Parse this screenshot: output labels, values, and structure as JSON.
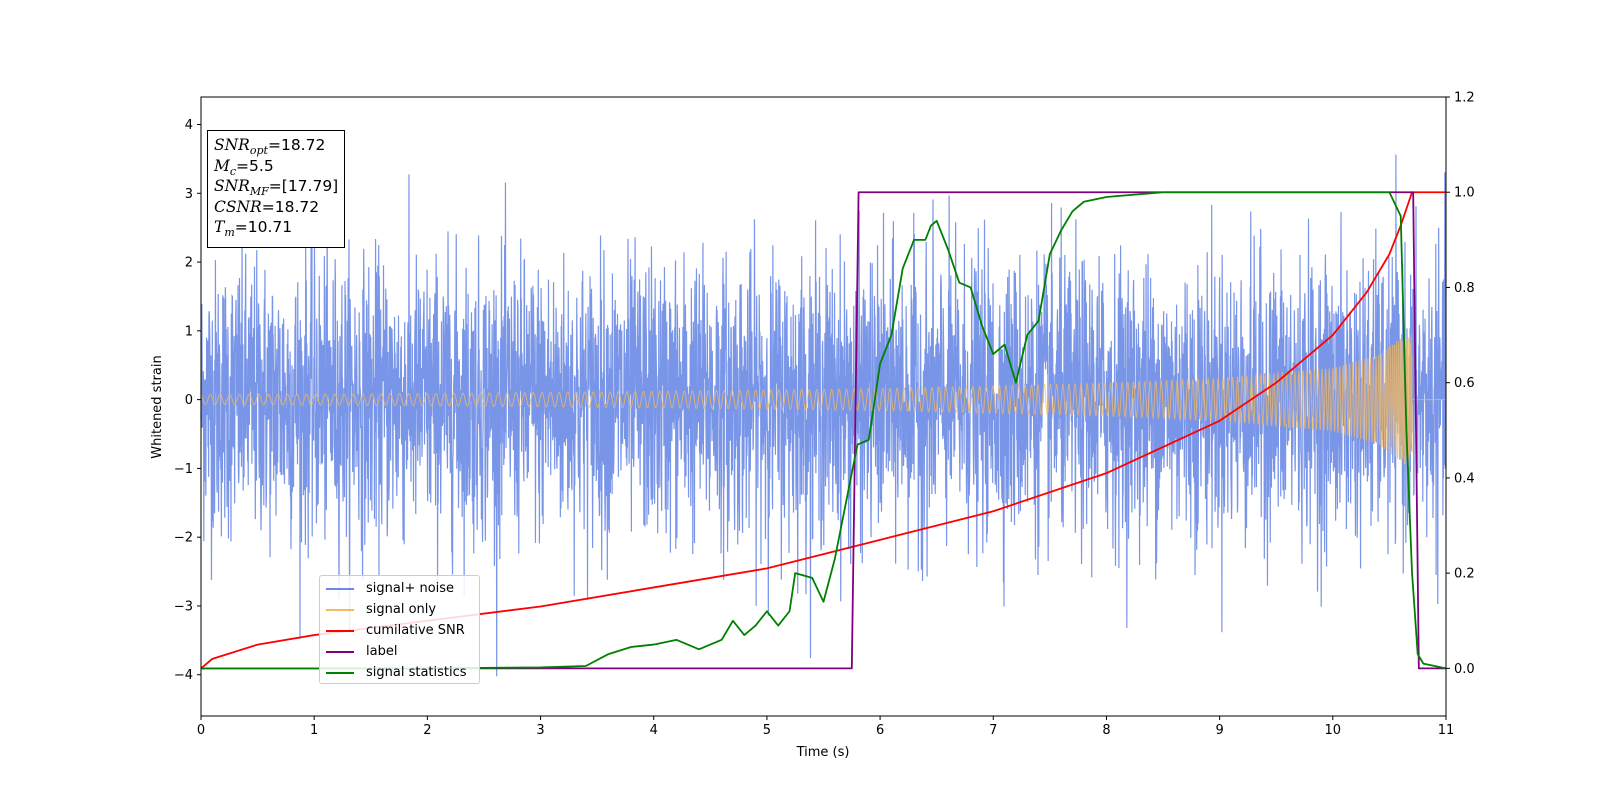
{
  "chart_data": {
    "type": "line",
    "xlabel": "Time (s)",
    "ylabel": "Whitened strain",
    "xlim": [
      0,
      11
    ],
    "ylim_left": [
      -4.6,
      4.4
    ],
    "ylim_right": [
      -0.1,
      1.2
    ],
    "x_ticks": [
      "0",
      "1",
      "2",
      "3",
      "4",
      "5",
      "6",
      "7",
      "8",
      "9",
      "10",
      "11"
    ],
    "y_ticks_left": [
      "4",
      "3",
      "2",
      "1",
      "0",
      "−1",
      "−2",
      "−3",
      "−4"
    ],
    "y_ticks_right": [
      "1.2",
      "1.0",
      "0.8",
      "0.6",
      "0.4",
      "0.2",
      "0.0"
    ],
    "grid": false,
    "legend_position": "lower-left",
    "annotation": {
      "snr_opt": "18.72",
      "mc": "5.5",
      "snr_mf": "[17.79]",
      "csnr": "18.72",
      "tm": "10.71"
    },
    "series": [
      {
        "name": "signal+ noise",
        "color": "#6a8ae6",
        "axis": "left",
        "description_values": {
          "amplitude_std": 1.0,
          "min": -4.2,
          "max": 4.0
        },
        "x_range": [
          0,
          11
        ]
      },
      {
        "name": "signal only",
        "color": "#f5b95e",
        "axis": "left",
        "envelope": {
          "x": [
            0,
            2,
            4,
            6,
            8,
            9,
            10,
            10.4,
            10.6,
            10.7
          ],
          "amp": [
            0.07,
            0.09,
            0.12,
            0.16,
            0.24,
            0.31,
            0.46,
            0.65,
            0.9,
            1.0
          ]
        },
        "x_range": [
          0,
          10.7
        ]
      },
      {
        "name": "cumilative SNR",
        "color": "#ff0000",
        "axis": "right",
        "x": [
          0,
          0.1,
          0.5,
          1,
          2,
          3,
          4,
          5,
          6,
          7,
          8,
          9,
          9.5,
          10,
          10.3,
          10.5,
          10.6,
          10.7,
          11
        ],
        "y": [
          0.0,
          0.02,
          0.05,
          0.07,
          0.1,
          0.13,
          0.17,
          0.21,
          0.27,
          0.33,
          0.41,
          0.52,
          0.6,
          0.7,
          0.79,
          0.87,
          0.93,
          1.0,
          1.0
        ]
      },
      {
        "name": "label",
        "color": "#800080",
        "axis": "right",
        "x": [
          0,
          5.75,
          5.81,
          10.71,
          10.76,
          11
        ],
        "y": [
          0,
          0,
          1,
          1,
          0,
          0
        ]
      },
      {
        "name": "signal statistics",
        "color": "#008000",
        "axis": "right",
        "x": [
          0,
          1,
          2,
          3,
          3.4,
          3.6,
          3.8,
          4.0,
          4.2,
          4.4,
          4.6,
          4.7,
          4.8,
          4.9,
          5.0,
          5.1,
          5.2,
          5.25,
          5.4,
          5.5,
          5.6,
          5.7,
          5.8,
          5.9,
          6.0,
          6.1,
          6.2,
          6.3,
          6.4,
          6.45,
          6.5,
          6.6,
          6.7,
          6.8,
          6.9,
          7.0,
          7.1,
          7.2,
          7.3,
          7.4,
          7.5,
          7.6,
          7.7,
          7.8,
          8.0,
          8.5,
          9.0,
          9.5,
          10.0,
          10.5,
          10.6,
          10.65,
          10.7,
          10.75,
          10.8,
          11.0
        ],
        "y": [
          0.0,
          0.0,
          0.0,
          0.002,
          0.005,
          0.03,
          0.045,
          0.05,
          0.06,
          0.04,
          0.06,
          0.1,
          0.07,
          0.09,
          0.12,
          0.09,
          0.12,
          0.2,
          0.19,
          0.14,
          0.23,
          0.35,
          0.47,
          0.48,
          0.64,
          0.7,
          0.84,
          0.9,
          0.9,
          0.93,
          0.94,
          0.88,
          0.81,
          0.8,
          0.72,
          0.66,
          0.68,
          0.6,
          0.7,
          0.73,
          0.87,
          0.92,
          0.96,
          0.98,
          0.99,
          1.0,
          1.0,
          1.0,
          1.0,
          1.0,
          0.95,
          0.5,
          0.2,
          0.03,
          0.01,
          0.0
        ]
      }
    ]
  }
}
